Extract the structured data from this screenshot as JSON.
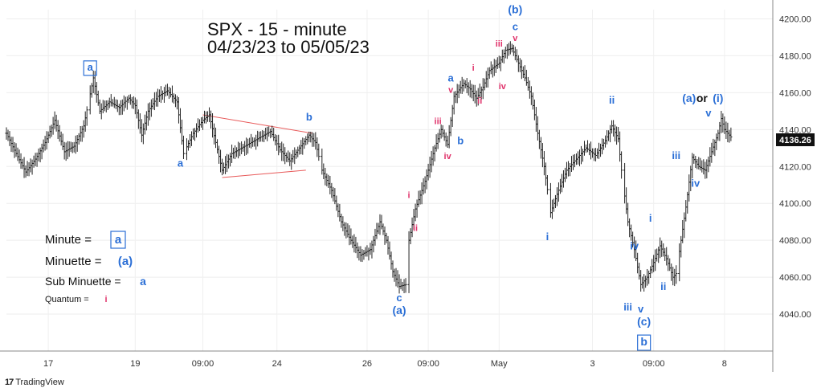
{
  "chart_data": {
    "type": "candlestick",
    "title": "SPX - 15 - minute",
    "subtitle": "04/23/23 to 05/05/23",
    "ylim": [
      4020,
      4205
    ],
    "yticks": [
      4040,
      4060,
      4080,
      4100,
      4120,
      4140,
      4160,
      4180,
      4200
    ],
    "ytick_labels": [
      "4040.00",
      "4060.00",
      "4080.00",
      "4100.00",
      "4120.00",
      "4140.00",
      "4160.00",
      "4180.00",
      "4200.00"
    ],
    "xtick_labels": [
      "17",
      "19",
      "09:00",
      "24",
      "26",
      "09:00",
      "May",
      "3",
      "09:00",
      "8"
    ],
    "xtick_bars": [
      13,
      40,
      61,
      84,
      112,
      131,
      153,
      182,
      201,
      223
    ],
    "xlim_bars": [
      0,
      238
    ],
    "last_price": "4136.26",
    "grid": true,
    "colors": {
      "wave_blue": "#2b6fd6",
      "wave_pink": "#e0336b",
      "triangle": "#e85a5a",
      "ink": "#111111"
    },
    "price_path": [
      [
        0,
        4138
      ],
      [
        3,
        4127
      ],
      [
        6,
        4117
      ],
      [
        9,
        4124
      ],
      [
        12,
        4133
      ],
      [
        15,
        4145
      ],
      [
        18,
        4128
      ],
      [
        21,
        4131
      ],
      [
        24,
        4142
      ],
      [
        27,
        4168
      ],
      [
        29,
        4150
      ],
      [
        32,
        4155
      ],
      [
        35,
        4152
      ],
      [
        38,
        4157
      ],
      [
        40,
        4153
      ],
      [
        42,
        4137
      ],
      [
        44,
        4150
      ],
      [
        47,
        4158
      ],
      [
        50,
        4161
      ],
      [
        53,
        4155
      ],
      [
        55,
        4127
      ],
      [
        58,
        4138
      ],
      [
        61,
        4145
      ],
      [
        63,
        4148
      ],
      [
        65,
        4133
      ],
      [
        67,
        4118
      ],
      [
        70,
        4127
      ],
      [
        73,
        4130
      ],
      [
        76,
        4133
      ],
      [
        79,
        4136
      ],
      [
        82,
        4139
      ],
      [
        85,
        4129
      ],
      [
        88,
        4123
      ],
      [
        91,
        4130
      ],
      [
        94,
        4137
      ],
      [
        96,
        4133
      ],
      [
        98,
        4118
      ],
      [
        101,
        4107
      ],
      [
        104,
        4090
      ],
      [
        107,
        4080
      ],
      [
        110,
        4072
      ],
      [
        113,
        4075
      ],
      [
        116,
        4090
      ],
      [
        118,
        4080
      ],
      [
        120,
        4063
      ],
      [
        122,
        4055
      ],
      [
        124,
        4056
      ],
      [
        125,
        4080
      ],
      [
        127,
        4097
      ],
      [
        130,
        4112
      ],
      [
        133,
        4130
      ],
      [
        135,
        4140
      ],
      [
        137,
        4132
      ],
      [
        139,
        4158
      ],
      [
        142,
        4165
      ],
      [
        144,
        4162
      ],
      [
        146,
        4157
      ],
      [
        148,
        4163
      ],
      [
        150,
        4172
      ],
      [
        153,
        4176
      ],
      [
        155,
        4183
      ],
      [
        157,
        4184
      ],
      [
        159,
        4176
      ],
      [
        161,
        4168
      ],
      [
        163,
        4158
      ],
      [
        165,
        4138
      ],
      [
        167,
        4120
      ],
      [
        169,
        4095
      ],
      [
        171,
        4105
      ],
      [
        174,
        4118
      ],
      [
        177,
        4124
      ],
      [
        180,
        4130
      ],
      [
        183,
        4126
      ],
      [
        186,
        4134
      ],
      [
        188,
        4142
      ],
      [
        190,
        4135
      ],
      [
        191,
        4118
      ],
      [
        193,
        4090
      ],
      [
        195,
        4075
      ],
      [
        197,
        4056
      ],
      [
        199,
        4060
      ],
      [
        201,
        4068
      ],
      [
        203,
        4077
      ],
      [
        205,
        4070
      ],
      [
        207,
        4060
      ],
      [
        208,
        4062
      ],
      [
        211,
        4098
      ],
      [
        213,
        4125
      ],
      [
        215,
        4120
      ],
      [
        217,
        4118
      ],
      [
        219,
        4128
      ],
      [
        221,
        4138
      ],
      [
        222,
        4146
      ],
      [
        223,
        4140
      ],
      [
        225,
        4136
      ]
    ],
    "triangle": {
      "upper": [
        [
          61,
          4148
        ],
        [
          95,
          4138
        ]
      ],
      "lower": [
        [
          67,
          4114
        ],
        [
          93,
          4118
        ]
      ]
    },
    "labels": [
      {
        "text": "a",
        "bar": 26,
        "price": 4172,
        "color": "wave_blue",
        "size": 13,
        "box": true
      },
      {
        "text": "a",
        "bar": 54,
        "price": 4120,
        "color": "wave_blue",
        "size": 13
      },
      {
        "text": "b",
        "bar": 94,
        "price": 4145,
        "color": "wave_blue",
        "size": 13
      },
      {
        "text": "c",
        "bar": 122,
        "price": 4047,
        "color": "wave_blue",
        "size": 13
      },
      {
        "text": "(a)",
        "bar": 122,
        "price": 4040,
        "color": "wave_blue",
        "size": 14
      },
      {
        "text": "i",
        "bar": 125,
        "price": 4103,
        "color": "wave_pink",
        "size": 11
      },
      {
        "text": "ii",
        "bar": 127,
        "price": 4085,
        "color": "wave_pink",
        "size": 11
      },
      {
        "text": "iii",
        "bar": 134,
        "price": 4143,
        "color": "wave_pink",
        "size": 11
      },
      {
        "text": "iv",
        "bar": 137,
        "price": 4124,
        "color": "wave_pink",
        "size": 11
      },
      {
        "text": "a",
        "bar": 138,
        "price": 4166,
        "color": "wave_blue",
        "size": 13
      },
      {
        "text": "v",
        "bar": 138,
        "price": 4160,
        "color": "wave_pink",
        "size": 11
      },
      {
        "text": "b",
        "bar": 141,
        "price": 4132,
        "color": "wave_blue",
        "size": 13
      },
      {
        "text": "i",
        "bar": 145,
        "price": 4172,
        "color": "wave_pink",
        "size": 11
      },
      {
        "text": "ii",
        "bar": 147,
        "price": 4154,
        "color": "wave_pink",
        "size": 11
      },
      {
        "text": "iii",
        "bar": 153,
        "price": 4185,
        "color": "wave_pink",
        "size": 11
      },
      {
        "text": "iv",
        "bar": 154,
        "price": 4162,
        "color": "wave_pink",
        "size": 11
      },
      {
        "text": "(b)",
        "bar": 158,
        "price": 4203,
        "color": "wave_blue",
        "size": 14
      },
      {
        "text": "c",
        "bar": 158,
        "price": 4194,
        "color": "wave_blue",
        "size": 13
      },
      {
        "text": "v",
        "bar": 158,
        "price": 4188,
        "color": "wave_pink",
        "size": 11
      },
      {
        "text": "i",
        "bar": 168,
        "price": 4080,
        "color": "wave_blue",
        "size": 13
      },
      {
        "text": "ii",
        "bar": 188,
        "price": 4154,
        "color": "wave_blue",
        "size": 13
      },
      {
        "text": "iv",
        "bar": 195,
        "price": 4075,
        "color": "wave_blue",
        "size": 13
      },
      {
        "text": "iii",
        "bar": 193,
        "price": 4042,
        "color": "wave_blue",
        "size": 13
      },
      {
        "text": "v",
        "bar": 197,
        "price": 4041,
        "color": "wave_blue",
        "size": 13
      },
      {
        "text": "(c)",
        "bar": 198,
        "price": 4034,
        "color": "wave_blue",
        "size": 14
      },
      {
        "text": "b",
        "bar": 198,
        "price": 4023,
        "color": "wave_blue",
        "size": 14,
        "box": true
      },
      {
        "text": "i",
        "bar": 200,
        "price": 4090,
        "color": "wave_blue",
        "size": 13
      },
      {
        "text": "ii",
        "bar": 204,
        "price": 4053,
        "color": "wave_blue",
        "size": 13
      },
      {
        "text": "iii",
        "bar": 208,
        "price": 4124,
        "color": "wave_blue",
        "size": 13
      },
      {
        "text": "iv",
        "bar": 214,
        "price": 4109,
        "color": "wave_blue",
        "size": 13
      },
      {
        "text": "(a)",
        "bar": 212,
        "price": 4155,
        "color": "wave_blue",
        "size": 14
      },
      {
        "text": "or",
        "bar": 216,
        "price": 4155,
        "color": "ink",
        "size": 14
      },
      {
        "text": "(i)",
        "bar": 221,
        "price": 4155,
        "color": "wave_blue",
        "size": 14
      },
      {
        "text": "v",
        "bar": 218,
        "price": 4147,
        "color": "wave_blue",
        "size": 13
      }
    ],
    "legend": [
      {
        "label": "Minute  =",
        "marker": "a",
        "marker_style": "box",
        "size": 15
      },
      {
        "label": "Minuette =",
        "marker": "(a)",
        "marker_style": "blue",
        "size": 15
      },
      {
        "label": "Sub Minuette =",
        "marker": "a",
        "marker_style": "blue",
        "size": 14
      },
      {
        "label": "Quantum =",
        "marker": "i",
        "marker_style": "pink",
        "size": 11
      }
    ]
  },
  "brand": {
    "logo": "17",
    "name": "TradingView"
  }
}
